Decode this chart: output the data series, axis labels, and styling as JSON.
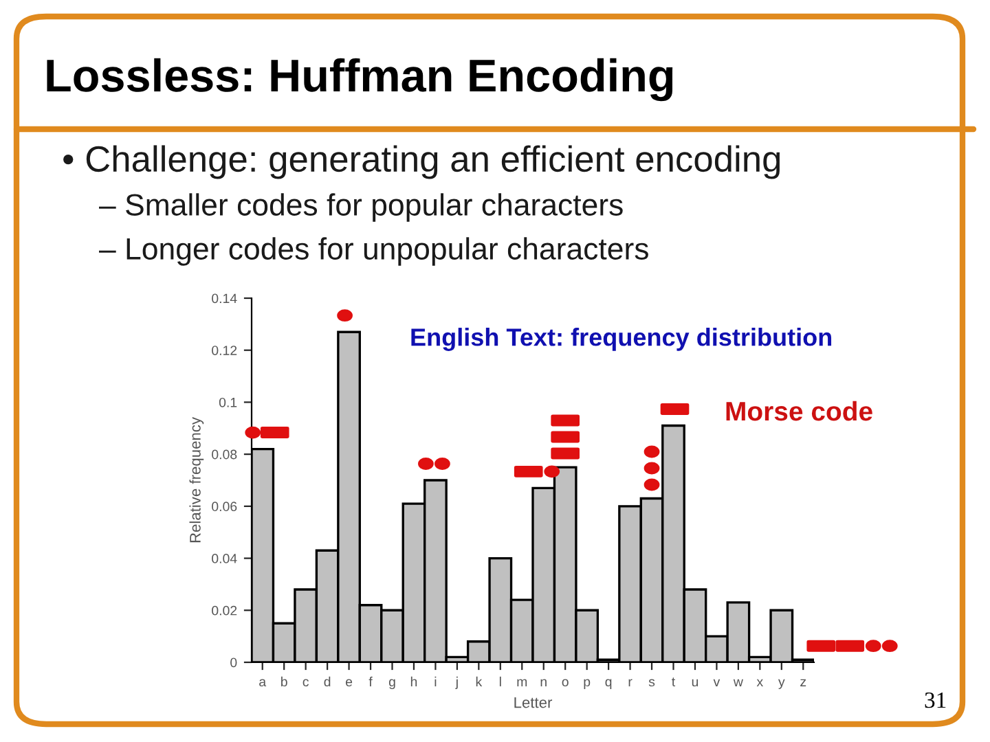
{
  "chart_data": {
    "type": "bar",
    "title": "English Text: frequency distribution",
    "xlabel": "Letter",
    "ylabel": "Relative frequency",
    "annotations": [
      "Lossless: Huffman Encoding",
      "• Challenge: generating an efficient encoding",
      "– Smaller codes for popular characters",
      "– Longer codes for unpopular characters",
      "Morse code",
      "31"
    ],
    "categories": [
      "a",
      "b",
      "c",
      "d",
      "e",
      "f",
      "g",
      "h",
      "i",
      "j",
      "k",
      "l",
      "m",
      "n",
      "o",
      "p",
      "q",
      "r",
      "s",
      "t",
      "u",
      "v",
      "w",
      "x",
      "y",
      "z"
    ],
    "values": [
      0.082,
      0.015,
      0.028,
      0.043,
      0.127,
      0.022,
      0.02,
      0.061,
      0.07,
      0.002,
      0.008,
      0.04,
      0.024,
      0.067,
      0.075,
      0.02,
      0.001,
      0.06,
      0.063,
      0.091,
      0.028,
      0.01,
      0.023,
      0.002,
      0.02,
      0.001
    ],
    "color": "#c0c0c0",
    "ylim": [
      0,
      0.14
    ],
    "yticks": [
      0,
      0.02,
      0.04,
      0.06,
      0.08,
      0.1,
      0.12,
      0.14
    ],
    "grid": false
  }
}
